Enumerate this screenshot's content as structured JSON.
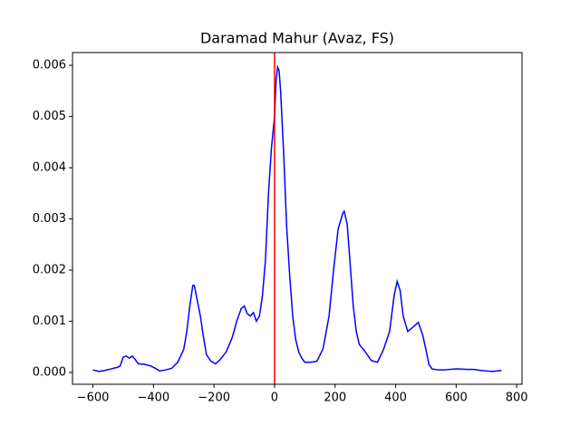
{
  "chart_data": {
    "type": "line",
    "title": "Daramad Mahur (Avaz, FS)",
    "x": [
      -600,
      -580,
      -560,
      -540,
      -520,
      -510,
      -500,
      -490,
      -480,
      -470,
      -460,
      -450,
      -430,
      -410,
      -390,
      -380,
      -360,
      -340,
      -320,
      -300,
      -290,
      -280,
      -270,
      -265,
      -255,
      -245,
      -235,
      -225,
      -210,
      -195,
      -180,
      -160,
      -140,
      -125,
      -110,
      -100,
      -90,
      -80,
      -70,
      -60,
      -50,
      -40,
      -30,
      -20,
      -10,
      0,
      5,
      10,
      15,
      20,
      30,
      40,
      50,
      60,
      70,
      80,
      90,
      100,
      120,
      140,
      160,
      180,
      195,
      210,
      225,
      230,
      240,
      250,
      260,
      270,
      280,
      300,
      320,
      340,
      360,
      380,
      395,
      405,
      415,
      425,
      440,
      460,
      475,
      490,
      500,
      510,
      520,
      540,
      560,
      600,
      640,
      660,
      680,
      700,
      720,
      750
    ],
    "series": [
      {
        "name": "Daramad Mahur",
        "color": "#0000ff",
        "values": [
          5e-05,
          2e-05,
          4e-05,
          7e-05,
          0.0001,
          0.00013,
          0.0003,
          0.00032,
          0.00028,
          0.00032,
          0.00025,
          0.00017,
          0.00016,
          0.00013,
          7e-05,
          3e-05,
          5e-05,
          8e-05,
          0.0002,
          0.00045,
          0.0008,
          0.0013,
          0.0017,
          0.0017,
          0.0014,
          0.0011,
          0.0007,
          0.00035,
          0.00022,
          0.00017,
          0.00025,
          0.0004,
          0.00068,
          0.001,
          0.00125,
          0.0013,
          0.00115,
          0.0011,
          0.00117,
          0.001,
          0.0011,
          0.0015,
          0.0022,
          0.0035,
          0.0044,
          0.005,
          0.0057,
          0.00597,
          0.0059,
          0.0055,
          0.0043,
          0.00285,
          0.0019,
          0.0011,
          0.00064,
          0.0004,
          0.00028,
          0.0002,
          0.0002,
          0.00022,
          0.00046,
          0.0011,
          0.002,
          0.0028,
          0.0031,
          0.00315,
          0.0029,
          0.0021,
          0.0013,
          0.0008,
          0.00055,
          0.0004,
          0.00023,
          0.0002,
          0.00045,
          0.0008,
          0.0015,
          0.00178,
          0.0016,
          0.0011,
          0.0008,
          0.0009,
          0.00098,
          0.00072,
          0.00045,
          0.00016,
          7e-05,
          5e-05,
          5e-05,
          7e-05,
          6e-05,
          6e-05,
          4e-05,
          3e-05,
          2e-05,
          4e-05
        ]
      }
    ],
    "vline": {
      "x": 0,
      "color": "#ff0000"
    },
    "xlim": [
      -667.5,
      817.5
    ],
    "xticks": [
      {
        "value": -600,
        "label": "−600"
      },
      {
        "value": -400,
        "label": "−400"
      },
      {
        "value": -200,
        "label": "−200"
      },
      0,
      200,
      400,
      600,
      800
    ],
    "ylim": [
      -0.00023,
      0.00625
    ],
    "yticks": [
      {
        "value": 0,
        "label": "0.000"
      },
      {
        "value": 0.001,
        "label": "0.001"
      },
      {
        "value": 0.002,
        "label": "0.002"
      },
      {
        "value": 0.003,
        "label": "0.003"
      },
      {
        "value": 0.004,
        "label": "0.004"
      },
      {
        "value": 0.005,
        "label": "0.005"
      },
      {
        "value": 0.006,
        "label": "0.006"
      }
    ]
  }
}
